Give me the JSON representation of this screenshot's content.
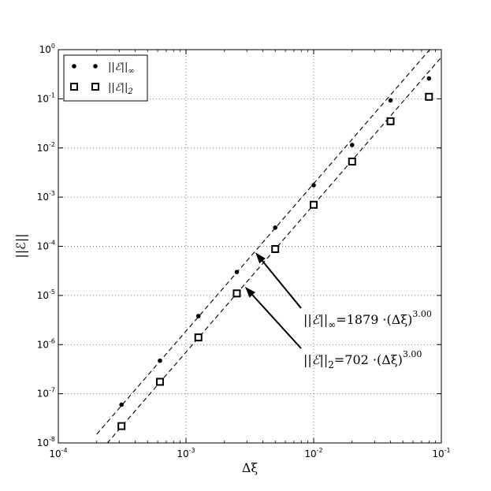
{
  "chart_data": {
    "type": "scatter",
    "xscale": "log",
    "yscale": "log",
    "xlim": [
      0.0001,
      0.1
    ],
    "ylim": [
      1e-08,
      1
    ],
    "grid": true,
    "xlabel": "Δξ",
    "ylabel": "||ℰ||",
    "x_ticks": [
      {
        "value": 0.0001,
        "base": "10",
        "exp": "-4"
      },
      {
        "value": 0.001,
        "base": "10",
        "exp": "-3"
      },
      {
        "value": 0.01,
        "base": "10",
        "exp": "-2"
      },
      {
        "value": 0.1,
        "base": "10",
        "exp": "-1"
      }
    ],
    "y_ticks": [
      {
        "value": 1e-08,
        "base": "10",
        "exp": "-8"
      },
      {
        "value": 1e-07,
        "base": "10",
        "exp": "-7"
      },
      {
        "value": 1e-06,
        "base": "10",
        "exp": "-6"
      },
      {
        "value": 1e-05,
        "base": "10",
        "exp": "-5"
      },
      {
        "value": 0.0001,
        "base": "10",
        "exp": "-4"
      },
      {
        "value": 0.001,
        "base": "10",
        "exp": "-3"
      },
      {
        "value": 0.01,
        "base": "10",
        "exp": "-2"
      },
      {
        "value": 0.1,
        "base": "10",
        "exp": "-1"
      },
      {
        "value": 1,
        "base": "10",
        "exp": "0"
      }
    ],
    "legend_position": "top-left",
    "series": [
      {
        "name": "||ℰ||∞",
        "legend_main": "||ℰ||",
        "legend_sub": "∞",
        "marker": "dot",
        "x": [
          0.0003125,
          0.000625,
          0.00125,
          0.0025,
          0.005,
          0.01,
          0.02,
          0.04,
          0.08
        ],
        "y": [
          6e-08,
          4.7e-07,
          3.8e-06,
          3e-05,
          0.00024,
          0.00175,
          0.0115,
          0.093,
          0.26
        ],
        "fit": {
          "coef": 1879,
          "order": 3.0
        }
      },
      {
        "name": "||ℰ||2",
        "legend_main": "||ℰ||",
        "legend_sub": "2",
        "marker": "square",
        "x": [
          0.0003125,
          0.000625,
          0.00125,
          0.0025,
          0.005,
          0.01,
          0.02,
          0.04,
          0.08
        ],
        "y": [
          2.2e-08,
          1.75e-07,
          1.4e-06,
          1.1e-05,
          8.8e-05,
          0.0007,
          0.0053,
          0.035,
          0.11
        ],
        "fit": {
          "coef": 702,
          "order": 3.0
        }
      }
    ],
    "annotations": [
      {
        "text_main": "||ℰ||",
        "text_sub": "∞",
        "text_eq": "=1879 ·(Δξ)",
        "text_sup": "3.00",
        "point_x": 0.0035,
        "point_y": 7.5e-05
      },
      {
        "text_main": "||ℰ||",
        "text_sub": "2",
        "text_eq": "=702 ·(Δξ)",
        "text_sup": "3.00",
        "point_x": 0.0029,
        "point_y": 1.5e-05
      }
    ]
  }
}
